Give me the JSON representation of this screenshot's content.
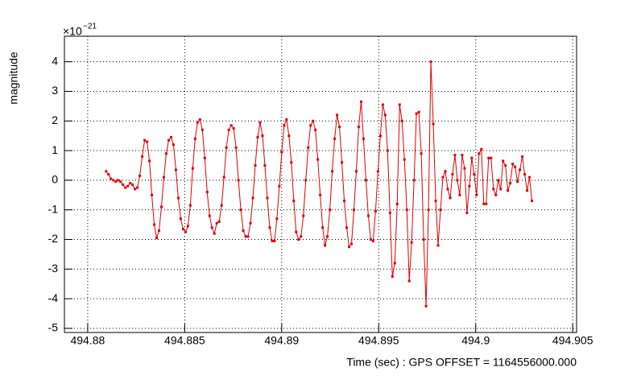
{
  "chart_data": {
    "type": "line",
    "y_label": "magnitude",
    "x_label": "Time (sec) : GPS OFFSET = 1164556000.000",
    "y_multiplier": "×10",
    "y_exponent": "−21",
    "xlim": [
      494.8788,
      494.9052
    ],
    "ylim": [
      -5.14,
      4.86
    ],
    "xticks": [
      494.88,
      494.885,
      494.89,
      494.895,
      494.9,
      494.905
    ],
    "yticks": [
      -5,
      -4,
      -3,
      -2,
      -1,
      0,
      1,
      2,
      3,
      4
    ],
    "grid": true,
    "x": [
      494.88095,
      494.881074,
      494.881198,
      494.881322,
      494.881446,
      494.88157,
      494.881694,
      494.881818,
      494.881942,
      494.882066,
      494.88219,
      494.882314,
      494.882438,
      494.882562,
      494.882686,
      494.88281,
      494.882934,
      494.883058,
      494.883182,
      494.883306,
      494.88343,
      494.883554,
      494.883678,
      494.883802,
      494.883926,
      494.88405,
      494.884174,
      494.884298,
      494.884422,
      494.884546,
      494.88467,
      494.884794,
      494.884918,
      494.885042,
      494.885166,
      494.88529,
      494.885414,
      494.885538,
      494.885662,
      494.885786,
      494.88591,
      494.886034,
      494.886158,
      494.886282,
      494.886406,
      494.88653,
      494.886654,
      494.886778,
      494.886902,
      494.887026,
      494.88715,
      494.887274,
      494.887398,
      494.887522,
      494.887646,
      494.88777,
      494.887894,
      494.888018,
      494.888142,
      494.888266,
      494.88839,
      494.888514,
      494.888638,
      494.888762,
      494.888886,
      494.88901,
      494.889134,
      494.889258,
      494.889382,
      494.889506,
      494.88963,
      494.889754,
      494.889878,
      494.890002,
      494.890126,
      494.89025,
      494.890374,
      494.890498,
      494.890622,
      494.890746,
      494.89087,
      494.890994,
      494.891118,
      494.891242,
      494.891366,
      494.89149,
      494.891614,
      494.891738,
      494.891862,
      494.891986,
      494.89211,
      494.892234,
      494.892358,
      494.892482,
      494.892606,
      494.89273,
      494.892854,
      494.892978,
      494.893102,
      494.893226,
      494.89335,
      494.893474,
      494.893598,
      494.893722,
      494.893846,
      494.89397,
      494.894094,
      494.894218,
      494.894342,
      494.894466,
      494.89459,
      494.894714,
      494.894838,
      494.894962,
      494.895086,
      494.89521,
      494.895334,
      494.895458,
      494.895582,
      494.895706,
      494.89583,
      494.895954,
      494.896078,
      494.896202,
      494.896326,
      494.89645,
      494.896574,
      494.896698,
      494.896822,
      494.896946,
      494.89707,
      494.897194,
      494.897318,
      494.897442,
      494.897566,
      494.89769,
      494.897814,
      494.897938,
      494.898062,
      494.898186,
      494.89831,
      494.898434,
      494.898558,
      494.898682,
      494.898806,
      494.89893,
      494.899054,
      494.899178,
      494.899302,
      494.899426,
      494.89955,
      494.899674,
      494.899798,
      494.899922,
      494.900046,
      494.90017,
      494.900294,
      494.900418,
      494.900542,
      494.900666,
      494.90079,
      494.900914,
      494.901038,
      494.901162,
      494.901286,
      494.90141,
      494.901534,
      494.901658,
      494.901782,
      494.901906,
      494.90203,
      494.902154,
      494.902278,
      494.902402,
      494.902526,
      494.90265,
      494.902774,
      494.902898
    ],
    "series": [
      {
        "color": "#e00000",
        "values": [
          0.3,
          0.2,
          0.05,
          0.0,
          -0.05,
          0.0,
          -0.05,
          -0.15,
          -0.25,
          -0.2,
          -0.1,
          -0.15,
          -0.3,
          -0.25,
          0.15,
          0.8,
          1.35,
          1.3,
          0.65,
          -0.5,
          -1.5,
          -1.95,
          -1.7,
          -0.9,
          0.1,
          0.9,
          1.35,
          1.45,
          1.2,
          0.35,
          -0.6,
          -1.3,
          -1.65,
          -1.75,
          -1.55,
          -0.85,
          0.4,
          1.4,
          1.95,
          2.05,
          1.7,
          0.75,
          -0.4,
          -1.2,
          -1.6,
          -1.8,
          -1.45,
          -1.4,
          -0.85,
          0.1,
          1.1,
          1.7,
          1.85,
          1.75,
          1.1,
          0.0,
          -1.0,
          -1.7,
          -1.9,
          -1.9,
          -1.45,
          -0.6,
          0.5,
          1.45,
          1.95,
          1.5,
          0.5,
          -0.6,
          -1.6,
          -2.05,
          -2.05,
          -1.3,
          -0.2,
          0.95,
          1.85,
          2.05,
          1.5,
          0.6,
          -0.7,
          -1.75,
          -2.0,
          -1.9,
          -1.2,
          0.0,
          1.1,
          1.85,
          2.0,
          1.7,
          0.7,
          -0.5,
          -1.6,
          -2.2,
          -1.9,
          -1.0,
          0.3,
          1.4,
          2.2,
          1.8,
          0.6,
          -0.7,
          -1.6,
          -2.25,
          -2.15,
          -1.0,
          0.3,
          1.8,
          2.65,
          1.4,
          0.0,
          -1.2,
          -2.0,
          -2.05,
          -1.05,
          0.3,
          1.5,
          2.55,
          2.2,
          1.0,
          -1.1,
          -3.25,
          -2.8,
          -0.8,
          2.55,
          2.0,
          0.7,
          -1.0,
          -3.4,
          -2.1,
          0.0,
          2.25,
          2.3,
          0.9,
          -2.0,
          -4.25,
          -1.0,
          4.0,
          1.9,
          -0.7,
          -2.2,
          -1.0,
          0.1,
          0.3,
          -0.3,
          -0.6,
          0.2,
          0.85,
          0.0,
          -0.5,
          0.85,
          0.4,
          -1.1,
          -0.2,
          0.75,
          0.2,
          -0.5,
          0.9,
          1.05,
          -0.8,
          -0.8,
          0.75,
          0.75,
          -0.3,
          -0.5,
          0.0,
          -0.3,
          0.65,
          0.5,
          -0.35,
          -0.1,
          0.55,
          0.45,
          -0.05,
          0.35,
          0.8,
          0.2,
          -0.35,
          0.1,
          -0.7
        ]
      }
    ]
  }
}
